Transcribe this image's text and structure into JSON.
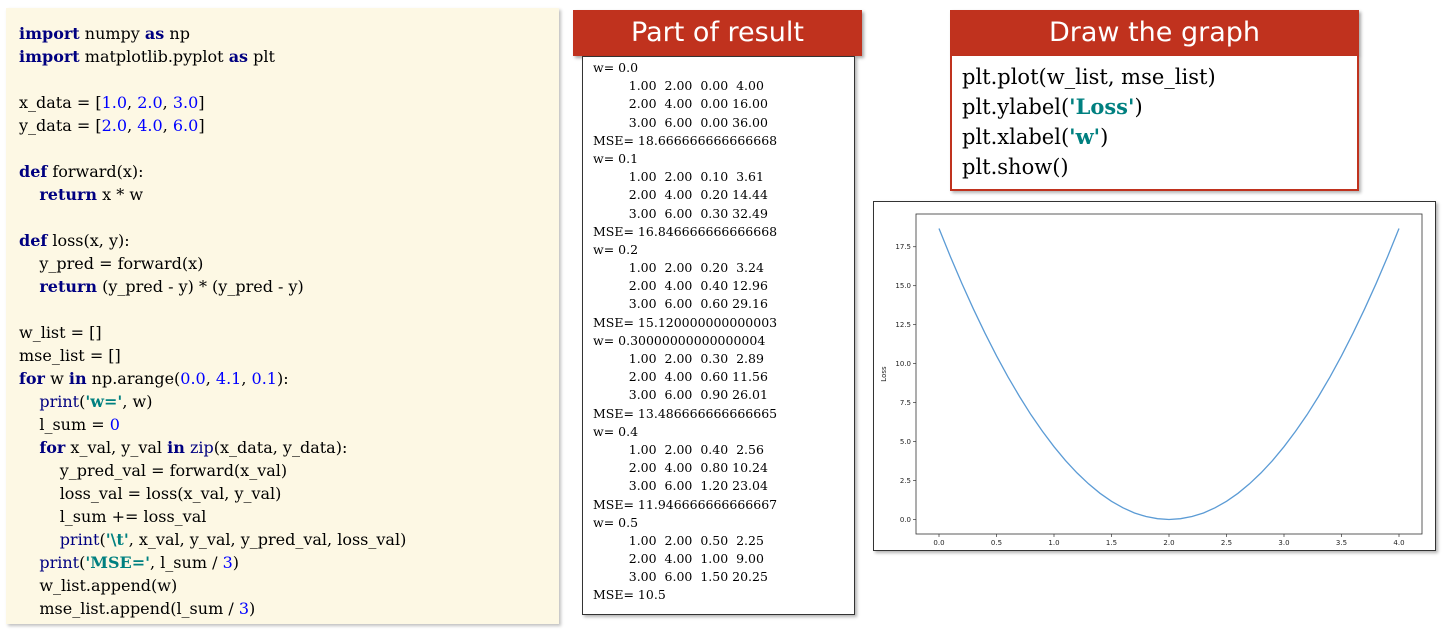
{
  "code_panel": {
    "lines": [
      [
        {
          "t": "import",
          "c": "kw"
        },
        {
          "t": " numpy "
        },
        {
          "t": "as",
          "c": "kw"
        },
        {
          "t": " np"
        }
      ],
      [
        {
          "t": "import",
          "c": "kw"
        },
        {
          "t": " matplotlib.pyplot "
        },
        {
          "t": "as",
          "c": "kw"
        },
        {
          "t": " plt"
        }
      ],
      [],
      [
        {
          "t": "x_data = ["
        },
        {
          "t": "1.0",
          "c": "num"
        },
        {
          "t": ", "
        },
        {
          "t": "2.0",
          "c": "num"
        },
        {
          "t": ", "
        },
        {
          "t": "3.0",
          "c": "num"
        },
        {
          "t": "]"
        }
      ],
      [
        {
          "t": "y_data = ["
        },
        {
          "t": "2.0",
          "c": "num"
        },
        {
          "t": ", "
        },
        {
          "t": "4.0",
          "c": "num"
        },
        {
          "t": ", "
        },
        {
          "t": "6.0",
          "c": "num"
        },
        {
          "t": "]"
        }
      ],
      [],
      [
        {
          "t": "def",
          "c": "kw"
        },
        {
          "t": " forward(x):"
        }
      ],
      [
        {
          "t": "    "
        },
        {
          "t": "return",
          "c": "kw"
        },
        {
          "t": " x * w"
        }
      ],
      [],
      [
        {
          "t": "def",
          "c": "kw"
        },
        {
          "t": " loss(x, y):"
        }
      ],
      [
        {
          "t": "    y_pred = forward(x)"
        }
      ],
      [
        {
          "t": "    "
        },
        {
          "t": "return",
          "c": "kw"
        },
        {
          "t": " (y_pred - y) * (y_pred - y)"
        }
      ],
      [],
      [
        {
          "t": "w_list = []"
        }
      ],
      [
        {
          "t": "mse_list = []"
        }
      ],
      [
        {
          "t": "for",
          "c": "kw"
        },
        {
          "t": " w "
        },
        {
          "t": "in",
          "c": "kw"
        },
        {
          "t": " np.arange("
        },
        {
          "t": "0.0",
          "c": "num"
        },
        {
          "t": ", "
        },
        {
          "t": "4.1",
          "c": "num"
        },
        {
          "t": ", "
        },
        {
          "t": "0.1",
          "c": "num"
        },
        {
          "t": "):"
        }
      ],
      [
        {
          "t": "    "
        },
        {
          "t": "print",
          "c": "bi"
        },
        {
          "t": "("
        },
        {
          "t": "'w='",
          "c": "str"
        },
        {
          "t": ", w)"
        }
      ],
      [
        {
          "t": "    l_sum = "
        },
        {
          "t": "0",
          "c": "num"
        }
      ],
      [
        {
          "t": "    "
        },
        {
          "t": "for",
          "c": "kw"
        },
        {
          "t": " x_val, y_val "
        },
        {
          "t": "in",
          "c": "kw"
        },
        {
          "t": " "
        },
        {
          "t": "zip",
          "c": "bi"
        },
        {
          "t": "(x_data, y_data):"
        }
      ],
      [
        {
          "t": "        y_pred_val = forward(x_val)"
        }
      ],
      [
        {
          "t": "        loss_val = loss(x_val, y_val)"
        }
      ],
      [
        {
          "t": "        l_sum += loss_val"
        }
      ],
      [
        {
          "t": "        "
        },
        {
          "t": "print",
          "c": "bi"
        },
        {
          "t": "("
        },
        {
          "t": "'\\t'",
          "c": "str"
        },
        {
          "t": ", x_val, y_val, y_pred_val, loss_val)"
        }
      ],
      [
        {
          "t": "    "
        },
        {
          "t": "print",
          "c": "bi"
        },
        {
          "t": "("
        },
        {
          "t": "'MSE='",
          "c": "str"
        },
        {
          "t": ", l_sum / "
        },
        {
          "t": "3",
          "c": "num"
        },
        {
          "t": ")"
        }
      ],
      [
        {
          "t": "    w_list.append(w)"
        }
      ],
      [
        {
          "t": "    mse_list.append(l_sum / "
        },
        {
          "t": "3",
          "c": "num"
        },
        {
          "t": ")"
        }
      ]
    ]
  },
  "result_panel": {
    "title": "Part of result",
    "lines": [
      "w= 0.0",
      "         1.00  2.00  0.00  4.00",
      "         2.00  4.00  0.00 16.00",
      "         3.00  6.00  0.00 36.00",
      "MSE= 18.666666666666668",
      "w= 0.1",
      "         1.00  2.00  0.10  3.61",
      "         2.00  4.00  0.20 14.44",
      "         3.00  6.00  0.30 32.49",
      "MSE= 16.846666666666668",
      "w= 0.2",
      "         1.00  2.00  0.20  3.24",
      "         2.00  4.00  0.40 12.96",
      "         3.00  6.00  0.60 29.16",
      "MSE= 15.120000000000003",
      "w= 0.30000000000000004",
      "         1.00  2.00  0.30  2.89",
      "         2.00  4.00  0.60 11.56",
      "         3.00  6.00  0.90 26.01",
      "MSE= 13.486666666666665",
      "w= 0.4",
      "         1.00  2.00  0.40  2.56",
      "         2.00  4.00  0.80 10.24",
      "         3.00  6.00  1.20 23.04",
      "MSE= 11.946666666666667",
      "w= 0.5",
      "         1.00  2.00  0.50  2.25",
      "         2.00  4.00  1.00  9.00",
      "         3.00  6.00  1.50 20.25",
      "MSE= 10.5"
    ]
  },
  "graph_panel": {
    "title": "Draw the graph",
    "code_lines": [
      [
        {
          "t": "plt.plot(w_list, mse_list)"
        }
      ],
      [
        {
          "t": "plt.ylabel("
        },
        {
          "t": "'Loss'",
          "c": "str"
        },
        {
          "t": ")"
        }
      ],
      [
        {
          "t": "plt.xlabel("
        },
        {
          "t": "'w'",
          "c": "str"
        },
        {
          "t": ")"
        }
      ],
      [
        {
          "t": "plt.show()"
        }
      ]
    ]
  },
  "chart_data": {
    "type": "line",
    "title": "",
    "xlabel": "w",
    "ylabel": "Loss",
    "xlim": [
      -0.2,
      4.2
    ],
    "ylim": [
      -0.93,
      19.6
    ],
    "xticks": [
      "0.0",
      "0.5",
      "1.0",
      "1.5",
      "2.0",
      "2.5",
      "3.0",
      "3.5",
      "4.0"
    ],
    "yticks": [
      "0.0",
      "2.5",
      "5.0",
      "7.5",
      "10.0",
      "12.5",
      "15.0",
      "17.5"
    ],
    "line_color": "#5b9bd5",
    "series": [
      {
        "x": [
          0.0,
          0.1,
          0.2,
          0.3,
          0.4,
          0.5,
          0.6,
          0.7,
          0.8,
          0.9,
          1.0,
          1.1,
          1.2,
          1.3,
          1.4,
          1.5,
          1.6,
          1.7,
          1.8,
          1.9,
          2.0,
          2.1,
          2.2,
          2.3,
          2.4,
          2.5,
          2.6,
          2.7,
          2.8,
          2.9,
          3.0,
          3.1,
          3.2,
          3.3,
          3.4,
          3.5,
          3.6,
          3.7,
          3.8,
          3.9,
          4.0
        ],
        "y": [
          18.67,
          16.85,
          15.12,
          13.49,
          11.95,
          10.5,
          9.15,
          7.89,
          6.72,
          5.65,
          4.67,
          3.78,
          2.99,
          2.29,
          1.68,
          1.17,
          0.75,
          0.42,
          0.19,
          0.05,
          0.0,
          0.05,
          0.19,
          0.42,
          0.75,
          1.17,
          1.68,
          2.29,
          2.99,
          3.78,
          4.67,
          5.65,
          6.72,
          7.89,
          9.15,
          10.5,
          11.95,
          13.49,
          15.12,
          16.85,
          18.67
        ]
      }
    ]
  }
}
